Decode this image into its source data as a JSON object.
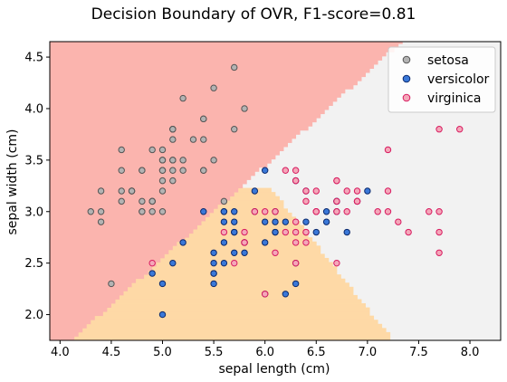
{
  "chart_data": {
    "type": "scatter",
    "title": "Decision Boundary of OVR, F1-score=0.81",
    "xlabel": "sepal length (cm)",
    "ylabel": "sepal width (cm)",
    "xlim": [
      3.9,
      8.3
    ],
    "ylim": [
      1.75,
      4.65
    ],
    "xticks": [
      "4.0",
      "4.5",
      "5.0",
      "5.5",
      "6.0",
      "6.5",
      "7.0",
      "7.5",
      "8.0"
    ],
    "yticks": [
      "2.0",
      "2.5",
      "3.0",
      "3.5",
      "4.0",
      "4.5"
    ],
    "legend_position": "top-right",
    "regions": [
      {
        "class": "setosa",
        "color": "#fbb4ae"
      },
      {
        "class": "versicolor",
        "color": "#fed9a6"
      },
      {
        "class": "virginica",
        "color": "#f2f2f2"
      }
    ],
    "series": [
      {
        "name": "setosa",
        "face": "#b3b3b3",
        "edge": "#555555",
        "points": [
          [
            5.1,
            3.5
          ],
          [
            4.9,
            3.0
          ],
          [
            4.7,
            3.2
          ],
          [
            4.6,
            3.1
          ],
          [
            5.0,
            3.6
          ],
          [
            5.4,
            3.9
          ],
          [
            4.6,
            3.4
          ],
          [
            5.0,
            3.4
          ],
          [
            4.4,
            2.9
          ],
          [
            4.9,
            3.1
          ],
          [
            5.4,
            3.7
          ],
          [
            4.8,
            3.4
          ],
          [
            4.8,
            3.0
          ],
          [
            4.3,
            3.0
          ],
          [
            5.8,
            4.0
          ],
          [
            5.7,
            4.4
          ],
          [
            5.4,
            3.9
          ],
          [
            5.1,
            3.5
          ],
          [
            5.7,
            3.8
          ],
          [
            5.1,
            3.8
          ],
          [
            5.4,
            3.4
          ],
          [
            5.1,
            3.7
          ],
          [
            4.6,
            3.6
          ],
          [
            5.1,
            3.3
          ],
          [
            4.8,
            3.4
          ],
          [
            5.0,
            3.0
          ],
          [
            5.0,
            3.4
          ],
          [
            5.2,
            3.5
          ],
          [
            5.2,
            3.4
          ],
          [
            4.7,
            3.2
          ],
          [
            4.8,
            3.1
          ],
          [
            5.4,
            3.4
          ],
          [
            5.2,
            4.1
          ],
          [
            5.5,
            4.2
          ],
          [
            4.9,
            3.1
          ],
          [
            5.0,
            3.2
          ],
          [
            5.5,
            3.5
          ],
          [
            4.9,
            3.6
          ],
          [
            4.4,
            3.0
          ],
          [
            5.1,
            3.4
          ],
          [
            5.0,
            3.5
          ],
          [
            4.5,
            2.3
          ],
          [
            4.4,
            3.2
          ],
          [
            5.0,
            3.5
          ],
          [
            5.1,
            3.8
          ],
          [
            4.8,
            3.0
          ],
          [
            5.1,
            3.8
          ],
          [
            4.6,
            3.2
          ],
          [
            5.3,
            3.7
          ],
          [
            5.0,
            3.3
          ],
          [
            4.9,
            3.1
          ],
          [
            4.7,
            3.2
          ],
          [
            5.6,
            3.1
          ]
        ]
      },
      {
        "name": "versicolor",
        "face": "#3a78d8",
        "edge": "#0b2a6e",
        "points": [
          [
            7.0,
            3.2
          ],
          [
            6.4,
            3.2
          ],
          [
            6.9,
            3.1
          ],
          [
            5.5,
            2.3
          ],
          [
            6.5,
            2.8
          ],
          [
            5.7,
            2.8
          ],
          [
            6.3,
            3.3
          ],
          [
            4.9,
            2.4
          ],
          [
            6.6,
            2.9
          ],
          [
            5.2,
            2.7
          ],
          [
            5.0,
            2.0
          ],
          [
            5.9,
            3.0
          ],
          [
            6.0,
            2.2
          ],
          [
            6.1,
            2.9
          ],
          [
            5.6,
            2.9
          ],
          [
            6.7,
            3.1
          ],
          [
            5.6,
            3.0
          ],
          [
            5.8,
            2.7
          ],
          [
            6.2,
            2.2
          ],
          [
            5.6,
            2.5
          ],
          [
            5.9,
            3.2
          ],
          [
            6.1,
            2.8
          ],
          [
            6.3,
            2.5
          ],
          [
            6.1,
            2.8
          ],
          [
            6.4,
            2.9
          ],
          [
            6.6,
            3.0
          ],
          [
            6.8,
            2.8
          ],
          [
            6.7,
            3.0
          ],
          [
            6.0,
            2.9
          ],
          [
            5.7,
            2.6
          ],
          [
            5.5,
            2.4
          ],
          [
            5.5,
            2.4
          ],
          [
            5.8,
            2.7
          ],
          [
            6.0,
            2.7
          ],
          [
            5.4,
            3.0
          ],
          [
            6.0,
            3.4
          ],
          [
            6.7,
            3.1
          ],
          [
            6.3,
            2.3
          ],
          [
            5.6,
            3.0
          ],
          [
            5.5,
            2.5
          ],
          [
            5.5,
            2.6
          ],
          [
            6.1,
            3.0
          ],
          [
            5.8,
            2.6
          ],
          [
            5.0,
            2.3
          ],
          [
            5.6,
            2.7
          ],
          [
            5.7,
            3.0
          ],
          [
            5.7,
            2.9
          ],
          [
            6.2,
            2.9
          ],
          [
            5.1,
            2.5
          ],
          [
            5.7,
            2.8
          ]
        ]
      },
      {
        "name": "virginica",
        "face": "#f4a7b9",
        "edge": "#d81b60",
        "points": [
          [
            6.3,
            3.3
          ],
          [
            5.8,
            2.7
          ],
          [
            7.1,
            3.0
          ],
          [
            6.3,
            2.9
          ],
          [
            6.5,
            3.0
          ],
          [
            7.6,
            3.0
          ],
          [
            4.9,
            2.5
          ],
          [
            7.3,
            2.9
          ],
          [
            6.7,
            2.5
          ],
          [
            7.2,
            3.6
          ],
          [
            6.5,
            3.2
          ],
          [
            6.4,
            2.7
          ],
          [
            6.8,
            3.0
          ],
          [
            5.7,
            2.5
          ],
          [
            5.8,
            2.8
          ],
          [
            6.4,
            3.2
          ],
          [
            6.5,
            3.0
          ],
          [
            7.7,
            3.8
          ],
          [
            7.7,
            2.6
          ],
          [
            6.0,
            2.2
          ],
          [
            6.9,
            3.2
          ],
          [
            5.6,
            2.8
          ],
          [
            7.7,
            2.8
          ],
          [
            6.3,
            2.7
          ],
          [
            6.7,
            3.3
          ],
          [
            7.2,
            3.2
          ],
          [
            6.2,
            2.8
          ],
          [
            6.1,
            3.0
          ],
          [
            6.4,
            2.8
          ],
          [
            7.2,
            3.0
          ],
          [
            7.4,
            2.8
          ],
          [
            7.9,
            3.8
          ],
          [
            6.4,
            2.8
          ],
          [
            6.3,
            2.8
          ],
          [
            6.1,
            2.6
          ],
          [
            7.7,
            3.0
          ],
          [
            6.3,
            3.4
          ],
          [
            6.4,
            3.1
          ],
          [
            6.0,
            3.0
          ],
          [
            6.9,
            3.1
          ],
          [
            6.7,
            3.1
          ],
          [
            6.9,
            3.1
          ],
          [
            5.8,
            2.7
          ],
          [
            6.8,
            3.2
          ],
          [
            6.7,
            3.3
          ],
          [
            6.7,
            3.0
          ],
          [
            6.3,
            2.5
          ],
          [
            6.5,
            3.0
          ],
          [
            6.2,
            3.4
          ],
          [
            5.9,
            3.0
          ]
        ]
      }
    ]
  }
}
